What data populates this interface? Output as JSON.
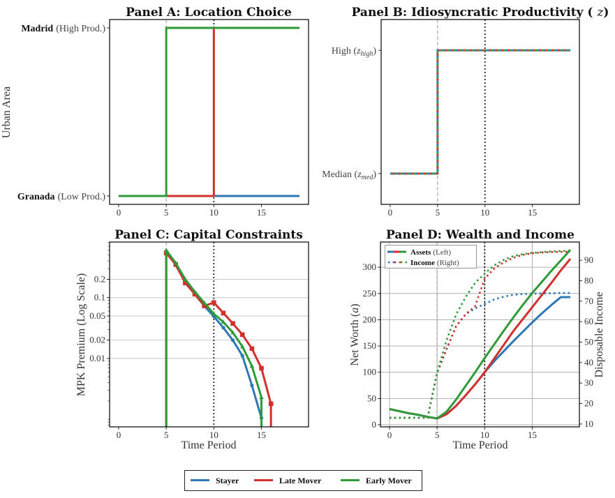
{
  "colors": {
    "stayer": "#2f77b4",
    "late_mover": "#d0312d",
    "early_mover": "#2e9a38",
    "grid": "#c8c8c8",
    "event_line": "#999999",
    "policy_line": "#111111"
  },
  "legend": {
    "items": [
      {
        "key": "stayer",
        "label": "Stayer"
      },
      {
        "key": "late_mover",
        "label": "Late Mover"
      },
      {
        "key": "early_mover",
        "label": "Early Mover"
      }
    ]
  },
  "chart_data": [
    {
      "id": "panel_a",
      "type": "line",
      "title": "Panel A: Location Choice",
      "xlabel": "",
      "ylabel": "Urban Area",
      "xlim": [
        -0.95,
        19.95
      ],
      "xticks": [
        "0",
        "5",
        "10",
        "15"
      ],
      "yticks": [
        {
          "bold": "Granada",
          "rest": "(Low Prod.)",
          "value": 0
        },
        {
          "bold": "Madrid",
          "rest": "(High Prod.)",
          "value": 1
        }
      ],
      "ylim": [
        -0.05,
        1.05
      ],
      "vlines": {
        "event": 5,
        "policy": 10
      },
      "series": [
        {
          "name": "Stayer",
          "key": "stayer",
          "step": true,
          "x": [
            0,
            1,
            2,
            3,
            4,
            5,
            6,
            7,
            8,
            9,
            10,
            11,
            12,
            13,
            14,
            15,
            16,
            17,
            18,
            19
          ],
          "y": [
            0,
            0,
            0,
            0,
            0,
            0,
            0,
            0,
            0,
            0,
            0,
            0,
            0,
            0,
            0,
            0,
            0,
            0,
            0,
            0
          ]
        },
        {
          "name": "Late Mover",
          "key": "late_mover",
          "step": true,
          "x": [
            0,
            1,
            2,
            3,
            4,
            5,
            6,
            7,
            8,
            9,
            10,
            11,
            12,
            13,
            14,
            15,
            16,
            17,
            18,
            19
          ],
          "y": [
            0,
            0,
            0,
            0,
            0,
            0,
            0,
            0,
            0,
            0,
            1,
            1,
            1,
            1,
            1,
            1,
            1,
            1,
            1,
            1
          ]
        },
        {
          "name": "Early Mover",
          "key": "early_mover",
          "step": true,
          "x": [
            0,
            1,
            2,
            3,
            4,
            5,
            6,
            7,
            8,
            9,
            10,
            11,
            12,
            13,
            14,
            15,
            16,
            17,
            18,
            19
          ],
          "y": [
            0,
            0,
            0,
            0,
            0,
            1,
            1,
            1,
            1,
            1,
            1,
            1,
            1,
            1,
            1,
            1,
            1,
            1,
            1,
            1
          ]
        }
      ]
    },
    {
      "id": "panel_b",
      "type": "line",
      "title": "Panel B: Idiosyncratic Productivity (z)",
      "xlabel": "",
      "ylabel": "",
      "xlim": [
        -0.95,
        19.95
      ],
      "xticks": [
        "0",
        "5",
        "10",
        "15"
      ],
      "yticks": [
        {
          "main": "Median (",
          "var": "z",
          "sub": "med",
          "close": ")",
          "value": 0
        },
        {
          "main": "High (",
          "var": "z",
          "sub": "high",
          "close": ")",
          "value": 1
        }
      ],
      "ylim": [
        -0.25,
        1.25
      ],
      "vlines": {
        "event": 5,
        "policy": 10
      },
      "series": [
        {
          "name": "Stayer",
          "key": "stayer",
          "step": true,
          "dash_offset": 0,
          "x": [
            0,
            5,
            5,
            19
          ],
          "y": [
            0,
            0,
            1,
            1
          ]
        },
        {
          "name": "Late Mover",
          "key": "late_mover",
          "step": true,
          "dash_offset": 3,
          "x": [
            0,
            5,
            5,
            19
          ],
          "y": [
            0,
            0,
            1,
            1
          ]
        },
        {
          "name": "Early Mover",
          "key": "early_mover",
          "step": true,
          "dash_offset": 6,
          "x": [
            0,
            5,
            5,
            19
          ],
          "y": [
            0,
            0,
            1,
            1
          ]
        }
      ]
    },
    {
      "id": "panel_c",
      "type": "line",
      "title": "Panel C: Capital Constraints",
      "xlabel": "Time Period",
      "ylabel": "MPK Premium (Log Scale)",
      "yscale": "log",
      "xlim": [
        -0.95,
        19.95
      ],
      "ylim": [
        0.00075,
        0.82
      ],
      "xticks": [
        "0",
        "5",
        "10",
        "15"
      ],
      "ytick_values": [
        0.2,
        0.1,
        0.05,
        0.02,
        0.01
      ],
      "ytick_labels": [
        "0.2",
        "0.1",
        "0.05",
        "0.02",
        "0.01"
      ],
      "grid": true,
      "vlines": {
        "event": 5,
        "policy": 10
      },
      "series": [
        {
          "name": "Stayer",
          "key": "stayer",
          "marker": "circle",
          "x": [
            5,
            6,
            7,
            8,
            9,
            10,
            11,
            12,
            13,
            14,
            15
          ],
          "y": [
            0.58,
            0.34,
            0.18,
            0.115,
            0.073,
            0.049,
            0.032,
            0.0199,
            0.0111,
            0.0036,
            0.00105
          ]
        },
        {
          "name": "Late Mover",
          "key": "late_mover",
          "marker": "square",
          "x": [
            5,
            6,
            7,
            8,
            9,
            10,
            11,
            12,
            13,
            14,
            15,
            16
          ],
          "y": [
            0.54,
            0.35,
            0.174,
            0.114,
            0.073,
            0.083,
            0.0558,
            0.0376,
            0.0246,
            0.0145,
            0.0069,
            0.0018
          ]
        },
        {
          "name": "Early Mover",
          "key": "early_mover",
          "marker": "triangle",
          "x": [
            5,
            6,
            7,
            8,
            9,
            10,
            11,
            12,
            13,
            14,
            15
          ],
          "y": [
            0.6,
            0.37,
            0.2,
            0.125,
            0.082,
            0.054,
            0.0396,
            0.0266,
            0.0157,
            0.0075,
            0.0023
          ]
        }
      ]
    },
    {
      "id": "panel_d",
      "type": "line",
      "title": "Panel D: Wealth and Income",
      "xlabel": "Time Period",
      "ylabel": "Net Worth (a)",
      "ylabel_right": "Disposable Income",
      "xlim": [
        -0.95,
        19.95
      ],
      "ylim": [
        -4,
        348
      ],
      "ylim_right": [
        8.6,
        98.9
      ],
      "xticks": [
        "0",
        "5",
        "10",
        "15"
      ],
      "yticks_left": [
        "0",
        "50",
        "100",
        "150",
        "200",
        "250",
        "300"
      ],
      "yticks_right": [
        "10",
        "20",
        "30",
        "40",
        "50",
        "60",
        "70",
        "80",
        "90"
      ],
      "grid": true,
      "vlines": {
        "event": 5,
        "policy": 10
      },
      "legend": {
        "position": "upper-left",
        "assets_bold": "Assets",
        "assets_rest": "(Left)",
        "income_bold": "Income",
        "income_rest": "(Right)"
      },
      "assets": [
        {
          "name": "Stayer",
          "key": "stayer",
          "x": [
            0,
            1,
            2,
            3,
            4,
            5,
            6,
            7,
            8,
            9,
            10,
            11,
            12,
            13,
            14,
            15,
            16,
            17,
            18,
            19
          ],
          "y": [
            30,
            26,
            22,
            19,
            15,
            12,
            20,
            36,
            56,
            77,
            100,
            121,
            140,
            159,
            177,
            195,
            212,
            228,
            243,
            243
          ]
        },
        {
          "name": "Late Mover",
          "key": "late_mover",
          "x": [
            0,
            1,
            2,
            3,
            4,
            5,
            6,
            7,
            8,
            9,
            10,
            11,
            12,
            13,
            14,
            15,
            16,
            17,
            18,
            19
          ],
          "y": [
            30,
            26,
            22,
            19,
            15,
            12,
            20,
            36,
            56,
            77,
            100,
            126,
            152,
            178,
            201,
            224,
            247,
            270,
            294,
            316
          ]
        },
        {
          "name": "Early Mover",
          "key": "early_mover",
          "x": [
            0,
            1,
            2,
            3,
            4,
            5,
            6,
            7,
            8,
            9,
            10,
            11,
            12,
            13,
            14,
            15,
            16,
            17,
            18,
            19
          ],
          "y": [
            30,
            26,
            22,
            19,
            15,
            12,
            25,
            48,
            74,
            100,
            127,
            153,
            179,
            204,
            228,
            251,
            272,
            293,
            313,
            333
          ]
        }
      ],
      "income": [
        {
          "name": "Stayer",
          "key": "stayer",
          "x": [
            0,
            1,
            2,
            3,
            4,
            5,
            6,
            7,
            8,
            9,
            10,
            11,
            12,
            13,
            14,
            15,
            16,
            17,
            18,
            19
          ],
          "y": [
            13,
            13,
            13,
            13,
            13,
            35,
            46.6,
            57.8,
            63.6,
            66.5,
            68.6,
            70.8,
            72.2,
            73.1,
            73.5,
            73.7,
            73.8,
            73.9,
            74,
            74
          ]
        },
        {
          "name": "Late Mover",
          "key": "late_mover",
          "x": [
            0,
            1,
            2,
            3,
            4,
            5,
            6,
            7,
            8,
            9,
            10,
            11,
            12,
            13,
            14,
            15,
            16,
            17,
            18,
            19
          ],
          "y": [
            13,
            13,
            13,
            13,
            13,
            35,
            46.6,
            57.8,
            63.6,
            67.6,
            81,
            86,
            89,
            91.2,
            92.6,
            93.4,
            93.8,
            94,
            94.1,
            94.2
          ]
        },
        {
          "name": "Early Mover",
          "key": "early_mover",
          "x": [
            0,
            1,
            2,
            3,
            4,
            5,
            6,
            7,
            8,
            9,
            10,
            11,
            12,
            13,
            14,
            15,
            16,
            17,
            18,
            19
          ],
          "y": [
            13,
            13,
            13,
            13,
            13,
            35,
            51,
            63.5,
            72,
            79,
            83.5,
            87.5,
            90.2,
            92,
            93,
            93.6,
            94,
            94.3,
            94.5,
            94.7
          ]
        }
      ]
    }
  ]
}
